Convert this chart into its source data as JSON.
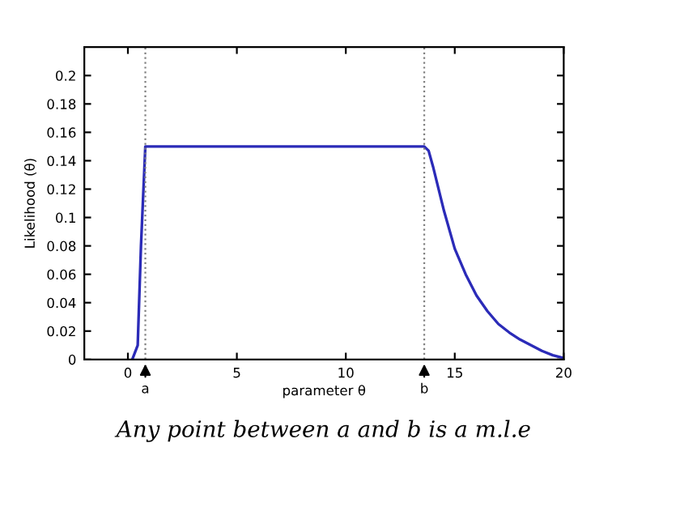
{
  "chart_data": {
    "type": "line",
    "xlabel": "parameter θ",
    "ylabel": "Likelihood (θ)",
    "series": [
      {
        "color": "#2b2bb8",
        "x": [
          0.2,
          0.3,
          0.45,
          0.6,
          0.8,
          2,
          5,
          10,
          13.4,
          13.6,
          13.8,
          14,
          14.5,
          15,
          15.5,
          16,
          16.5,
          17,
          17.5,
          18,
          18.5,
          19,
          19.5,
          20
        ],
        "values": [
          0,
          0.004,
          0.01,
          0.08,
          0.15,
          0.15,
          0.15,
          0.15,
          0.15,
          0.15,
          0.147,
          0.136,
          0.105,
          0.078,
          0.06,
          0.045,
          0.034,
          0.025,
          0.019,
          0.014,
          0.01,
          0.006,
          0.003,
          0.001
        ]
      }
    ],
    "xlim": [
      -2,
      20
    ],
    "ylim": [
      0,
      0.22
    ],
    "xticks": [
      0,
      5,
      10,
      15,
      20
    ],
    "yticks": [
      0,
      0.02,
      0.04,
      0.06,
      0.08,
      0.1,
      0.12,
      0.14,
      0.16,
      0.18,
      0.2
    ],
    "grid": false,
    "legend": false,
    "marker": "none",
    "line_style": "solid",
    "ref_lines": [
      {
        "axis": "x",
        "value": 0.8,
        "label": "a",
        "color": "#808080",
        "line_style": "dotted"
      },
      {
        "axis": "x",
        "value": 13.6,
        "label": "b",
        "color": "#808080",
        "line_style": "dotted"
      }
    ],
    "annotations": [
      "Any point between a and b is a m.l.e"
    ]
  }
}
